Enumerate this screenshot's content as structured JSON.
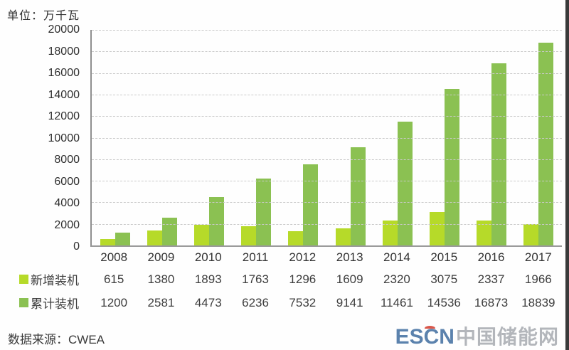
{
  "page": {
    "unit_label": "单位：万千瓦",
    "source_label": "数据来源：CWEA",
    "logo": {
      "escn": "ESCN",
      "cn": "中国储能网",
      "escn_color": "#5b82ad",
      "cn_color": "#b3b6bb",
      "accent_color": "#d9574a"
    }
  },
  "chart_data": {
    "type": "bar",
    "title": "",
    "unit_label": "单位：万千瓦",
    "categories": [
      "2008",
      "2009",
      "2010",
      "2011",
      "2012",
      "2013",
      "2014",
      "2015",
      "2016",
      "2017"
    ],
    "series": [
      {
        "name": "新增装机",
        "color": "#b6da29",
        "values": [
          615,
          1380,
          1893,
          1763,
          1296,
          1609,
          2320,
          3075,
          2337,
          1966
        ]
      },
      {
        "name": "累计装机",
        "color": "#8bc152",
        "values": [
          1200,
          2581,
          4473,
          6236,
          7532,
          9141,
          11461,
          14536,
          16873,
          18839
        ]
      }
    ],
    "ylim": [
      0,
      20000
    ],
    "y_ticks": [
      0,
      2000,
      4000,
      6000,
      8000,
      10000,
      12000,
      14000,
      16000,
      18000,
      20000
    ],
    "grid": "horizontal-dashed",
    "legend_position": "table-below-chart",
    "source": "CWEA"
  }
}
